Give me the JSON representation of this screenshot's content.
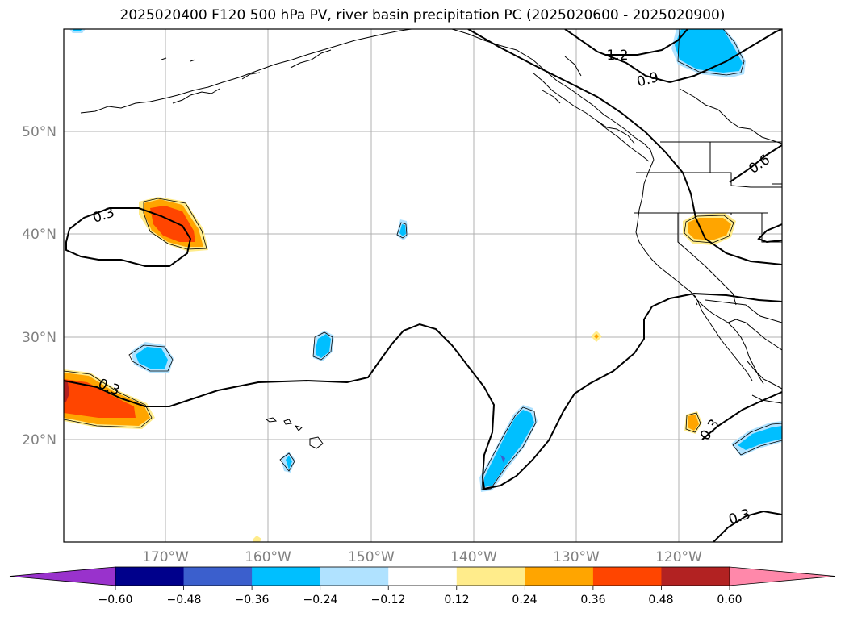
{
  "title": "2025020400 F120 500 hPa PV, river basin precipitation PC (2025020600 - 2025020900)",
  "axes": {
    "lat_labels": [
      "50°N",
      "40°N",
      "30°N",
      "20°N"
    ],
    "lon_labels": [
      "170°W",
      "160°W",
      "150°W",
      "140°W",
      "130°W",
      "120°W"
    ]
  },
  "contour_labels": [
    "1.2",
    "0.9",
    "0.6",
    "0.3",
    "0.3",
    "0.3",
    "0.3"
  ],
  "colorbar": {
    "colors": [
      "#9932cc",
      "#00008b",
      "#3b5fcd",
      "#00bfff",
      "#b0e2ff",
      "#ffffff",
      "#ffec8b",
      "#ffa500",
      "#ff4500",
      "#b22222",
      "#ff88aa",
      "#ff88aa"
    ],
    "under_color": "#9932cc",
    "over_color": "#ff88aa",
    "tick_labels": [
      "−0.60",
      "−0.48",
      "−0.36",
      "−0.24",
      "−0.12",
      "0.12",
      "0.24",
      "0.36",
      "0.48",
      "0.60"
    ]
  },
  "colors": {
    "cyan": "#00bfff",
    "light_blue": "#b0e2ff",
    "yellow": "#ffec8b",
    "orange": "#ffa500",
    "red_orange": "#ff4500",
    "grid": "#b0b0b0"
  }
}
